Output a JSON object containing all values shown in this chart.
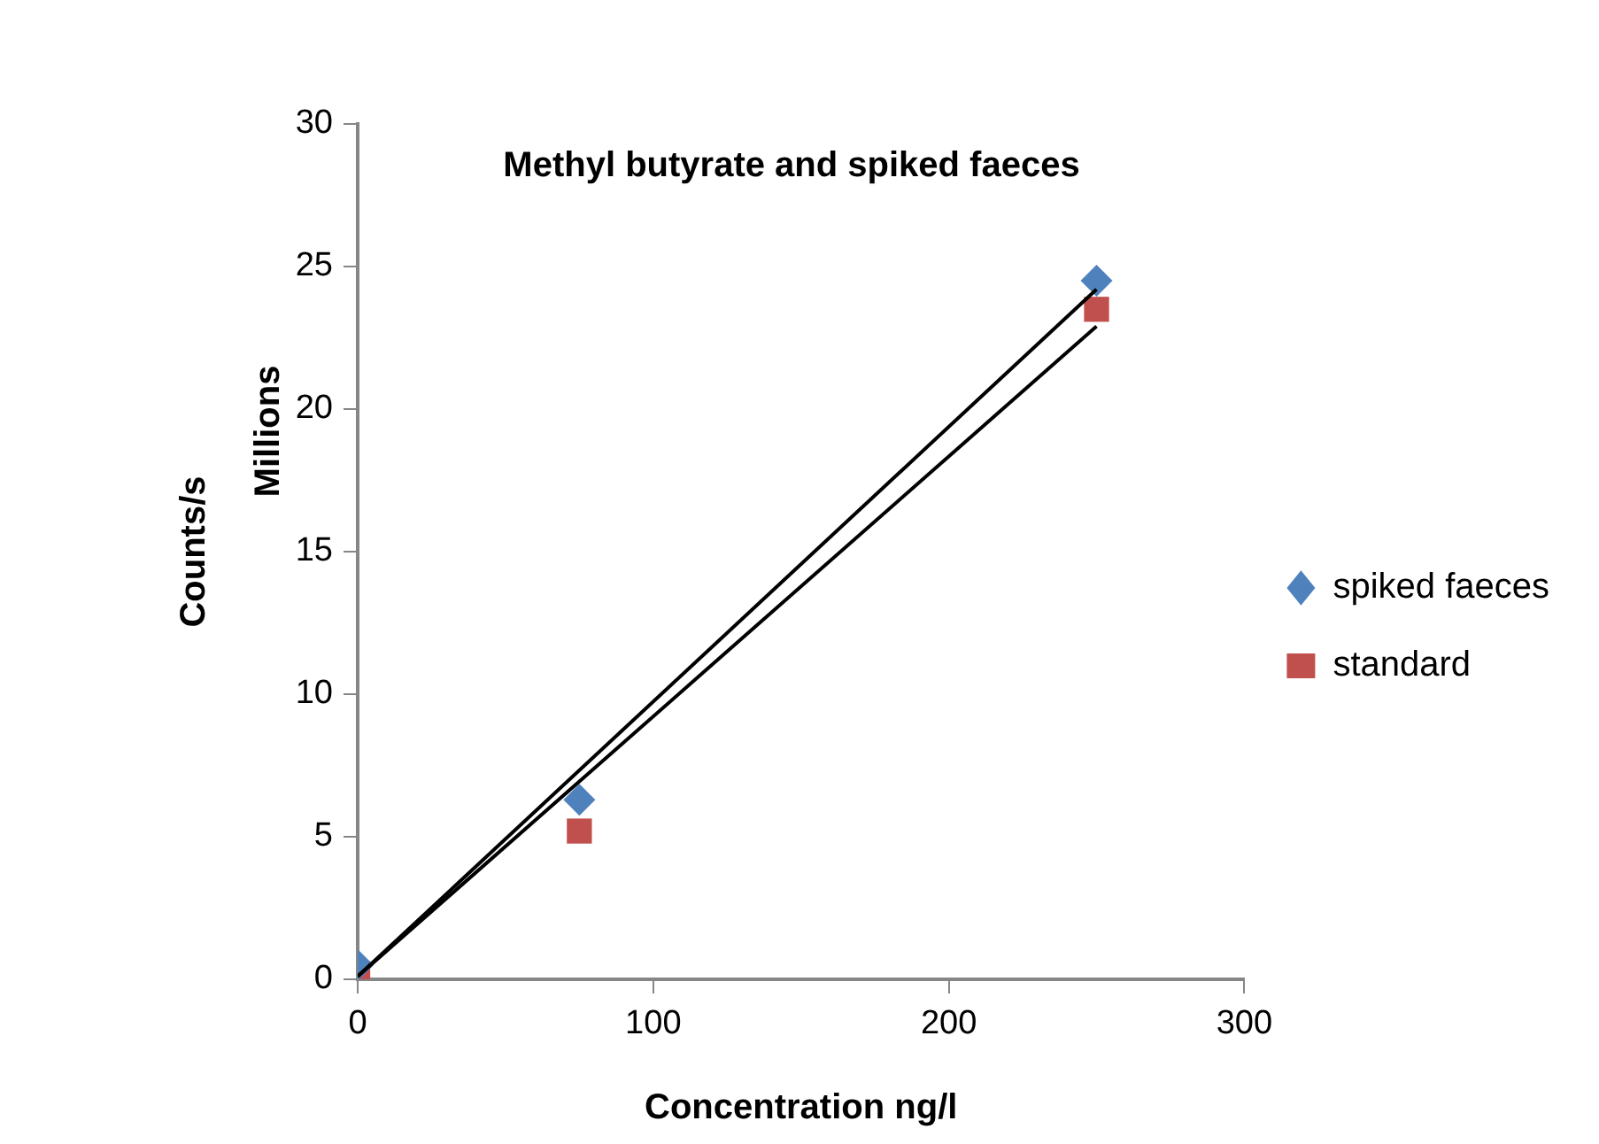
{
  "chart_data": {
    "type": "scatter",
    "title": "Methyl butyrate and spiked faeces",
    "xlabel": "Concentration ng/l",
    "ylabel": "Counts/s",
    "annotations": [
      "Millions"
    ],
    "xlim": [
      0,
      300
    ],
    "xticks": [
      0,
      100,
      200,
      300
    ],
    "ylim": [
      0,
      30
    ],
    "yticks": [
      0,
      5,
      10,
      15,
      20,
      25,
      30
    ],
    "grid": false,
    "legend": "right",
    "series": [
      {
        "name": "spiked faeces",
        "type": "scatter",
        "color": "#4f81bd",
        "marker": "diamond",
        "x": [
          0,
          75,
          250
        ],
        "values": [
          0.5,
          6.3,
          24.5
        ]
      },
      {
        "name": "standard",
        "type": "scatter",
        "color": "#c0504d",
        "marker": "square",
        "x": [
          0,
          75,
          250
        ],
        "values": [
          0.2,
          5.2,
          23.5
        ]
      },
      {
        "type": "line",
        "color": "#000000",
        "marker": "none",
        "x": [
          0,
          250
        ],
        "values": [
          0.1,
          24.2
        ]
      },
      {
        "type": "line",
        "color": "#000000",
        "marker": "none",
        "x": [
          0,
          250
        ],
        "values": [
          0.1,
          22.9
        ]
      }
    ]
  }
}
